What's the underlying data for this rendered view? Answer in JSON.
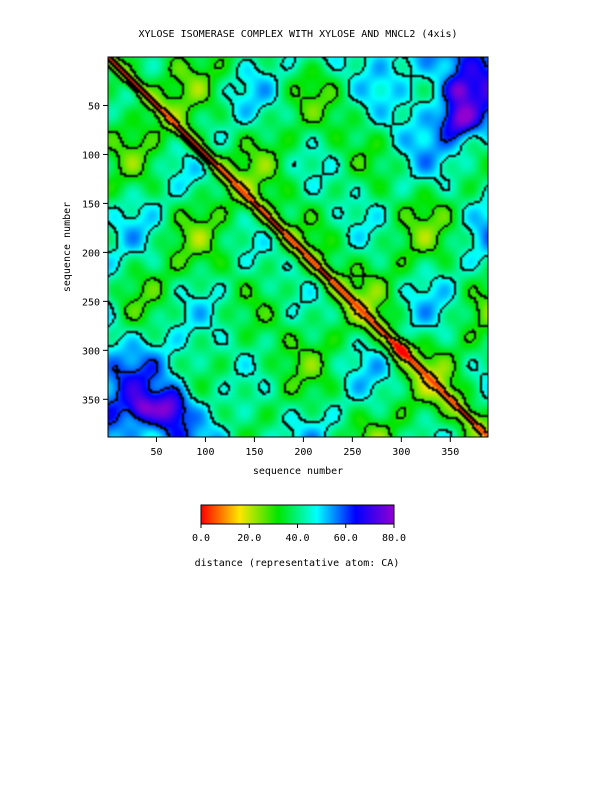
{
  "chart_data": {
    "type": "heatmap",
    "title": "XYLOSE ISOMERASE COMPLEX WITH XYLOSE AND MNCL2 (4xis)",
    "xlabel": "sequence number",
    "ylabel": "sequence number",
    "x_range": [
      1,
      388
    ],
    "y_range": [
      1,
      388
    ],
    "y_inverted": true,
    "x_ticks": [
      50,
      100,
      150,
      200,
      250,
      300,
      350
    ],
    "y_ticks": [
      50,
      100,
      150,
      200,
      250,
      300,
      350
    ],
    "contour_lines": true,
    "colorbar": {
      "label": "distance (representative atom: CA)",
      "min": 0,
      "max": 80,
      "ticks": [
        "0.0",
        "20.0",
        "40.0",
        "60.0",
        "80.0"
      ],
      "colors": [
        "#ff0000",
        "#ffe600",
        "#00e600",
        "#00ffff",
        "#0000ff",
        "#9000d0"
      ]
    }
  }
}
